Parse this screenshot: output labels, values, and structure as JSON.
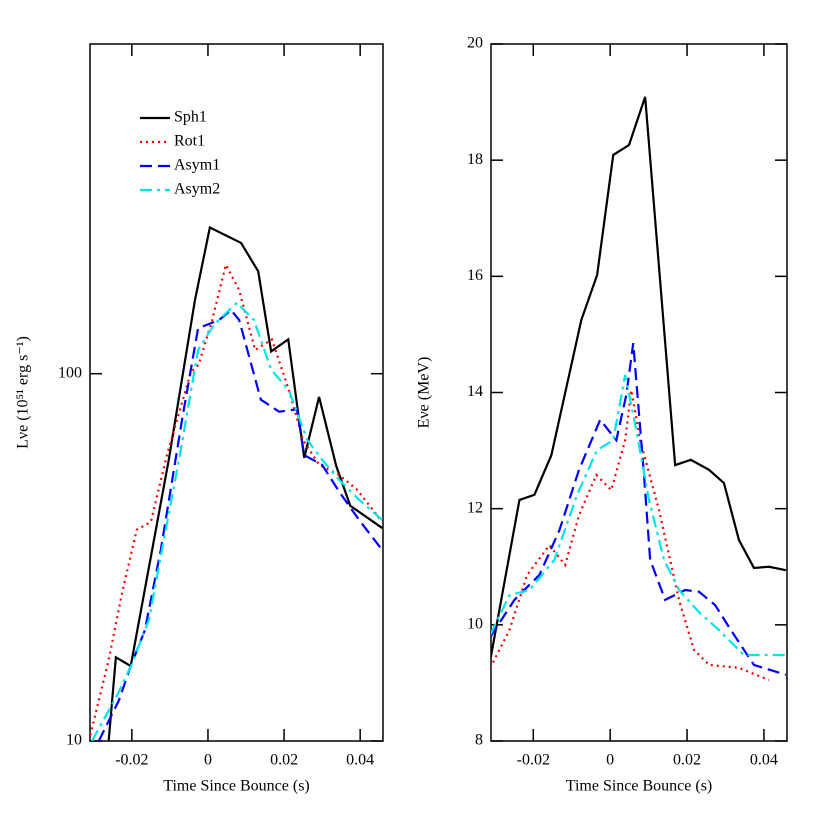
{
  "chart_data": [
    {
      "type": "line",
      "ylabel": "Lνe (10⁵¹ erg s⁻¹)",
      "xlabel": "Time Since Bounce (s)",
      "log_y": true,
      "legend": "upper left",
      "xlim": [
        -0.031,
        0.046
      ],
      "xticks": [
        -0.02,
        0,
        0.02,
        0.04
      ],
      "ylim": [
        10,
        790
      ],
      "yticks": [
        10,
        100
      ],
      "series": [
        {
          "name": "Sph1",
          "color": "#000000",
          "linestyle": "solid",
          "x": [
            -0.0261,
            -0.0242,
            -0.0203,
            -0.0103,
            -0.0034,
            0.0005,
            0.0087,
            0.0132,
            0.0166,
            0.0211,
            0.0253,
            0.0292,
            0.0337,
            0.0374,
            0.0458
          ],
          "values": [
            10,
            16.9,
            16.0,
            58.3,
            159,
            250,
            227,
            190,
            115,
            124,
            59,
            86.5,
            56.1,
            43.7,
            38
          ]
        },
        {
          "name": "Rot1",
          "color": "#ff0000",
          "linestyle": "dotted",
          "x": [
            -0.0313,
            -0.0261,
            -0.0224,
            -0.0187,
            -0.015,
            -0.0108,
            -0.0045,
            -0.0024,
            0.0011,
            0.0047,
            0.0082,
            0.0124,
            0.0168,
            0.0213,
            0.025,
            0.0292,
            0.0345,
            0.0392,
            0.0458
          ],
          "values": [
            10,
            16.6,
            25.8,
            37.6,
            39.5,
            60,
            101,
            106,
            140,
            198,
            169,
            116,
            124,
            90,
            66,
            56.5,
            53,
            48.3,
            39.5
          ]
        },
        {
          "name": "Asym1",
          "color": "#0000ff",
          "linestyle": "dashed",
          "x": [
            -0.0287,
            -0.0234,
            -0.0203,
            -0.0166,
            -0.0124,
            -0.0068,
            -0.0026,
            0.0029,
            0.0061,
            0.0082,
            0.0139,
            0.0187,
            0.0234,
            0.0253,
            0.03,
            0.0345,
            0.0397,
            0.0458
          ],
          "values": [
            10,
            12.9,
            16,
            20,
            33.1,
            75,
            133,
            140,
            149,
            140,
            85,
            78.8,
            80,
            60,
            56.5,
            47.7,
            40,
            33.1
          ]
        },
        {
          "name": "Asym2",
          "color": "#00e5e5",
          "linestyle": "dashdot",
          "x": [
            -0.0305,
            -0.0239,
            -0.02,
            -0.0155,
            -0.0116,
            -0.0076,
            -0.0026,
            0.0016,
            0.0076,
            0.0121,
            0.0166,
            0.0213,
            0.0261,
            0.03,
            0.0345,
            0.0397,
            0.0458
          ],
          "values": [
            10,
            13.3,
            16.2,
            21.4,
            35.3,
            58.3,
            116,
            136,
            156,
            140,
            102.6,
            90,
            66,
            58.3,
            51.4,
            45.4,
            40
          ]
        }
      ]
    },
    {
      "type": "line",
      "ylabel": "Eνe (MeV)",
      "xlabel": "Time Since Bounce (s)",
      "log_y": false,
      "xlim": [
        -0.031,
        0.046
      ],
      "xticks": [
        -0.02,
        0,
        0.02,
        0.04
      ],
      "ylim": [
        8,
        20
      ],
      "yticks": [
        8,
        10,
        12,
        14,
        16,
        18,
        20
      ],
      "series": [
        {
          "color": "#000000",
          "linestyle": "solid",
          "x": [
            -0.0312,
            -0.0236,
            -0.0197,
            -0.0153,
            -0.0075,
            -0.0034,
            0.0008,
            0.0049,
            0.0091,
            0.0169,
            0.021,
            0.0257,
            0.0296,
            0.0335,
            0.0374,
            0.0413,
            0.0457
          ],
          "values": [
            9.39,
            12.15,
            12.24,
            12.92,
            15.25,
            16.02,
            18.09,
            18.26,
            19.09,
            12.75,
            12.84,
            12.67,
            12.44,
            11.46,
            10.98,
            11.0,
            10.94
          ]
        },
        {
          "color": "#ff0000",
          "linestyle": "dotted",
          "x": [
            -0.0312,
            -0.0262,
            -0.0216,
            -0.0158,
            -0.0117,
            -0.0081,
            -0.0036,
            0.0003,
            0.0039,
            0.0055,
            0.0078,
            0.0127,
            0.0179,
            0.0218,
            0.0257,
            0.0335,
            0.0413
          ],
          "values": [
            9.26,
            9.91,
            10.86,
            11.37,
            11.03,
            11.89,
            12.58,
            12.32,
            13.18,
            14.04,
            13.18,
            11.98,
            10.43,
            9.57,
            9.31,
            9.26,
            9.05
          ]
        },
        {
          "color": "#0000ff",
          "linestyle": "dashed",
          "x": [
            -0.0312,
            -0.0249,
            -0.0184,
            -0.0132,
            -0.0081,
            -0.0026,
            0.0016,
            0.0042,
            0.006,
            0.0088,
            0.0104,
            0.0143,
            0.0195,
            0.0231,
            0.0273,
            0.0314,
            0.0374,
            0.0457
          ],
          "values": [
            9.79,
            10.43,
            10.86,
            11.63,
            12.67,
            13.53,
            13.18,
            13.96,
            14.85,
            12.58,
            11.12,
            10.43,
            10.6,
            10.57,
            10.34,
            9.91,
            9.31,
            9.14
          ]
        },
        {
          "color": "#00e5e5",
          "linestyle": "dashdot",
          "x": [
            -0.0312,
            -0.0262,
            -0.021,
            -0.0145,
            -0.0086,
            -0.0034,
            0.0008,
            0.0039,
            0.0068,
            0.0101,
            0.014,
            0.0179,
            0.0231,
            0.0283,
            0.0348,
            0.0457
          ],
          "values": [
            9.83,
            10.51,
            10.6,
            11.12,
            12.24,
            13.01,
            13.18,
            14.3,
            13.35,
            12.15,
            11.12,
            10.6,
            10.22,
            9.91,
            9.48,
            9.48
          ]
        }
      ]
    }
  ]
}
